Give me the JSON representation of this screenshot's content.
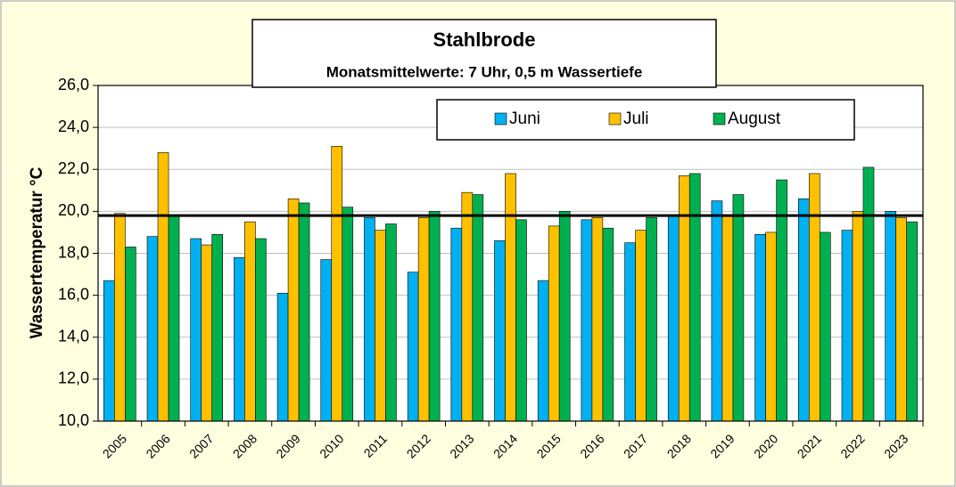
{
  "chart_data": {
    "type": "bar",
    "title": "Stahlbrode",
    "subtitle": "Monatsmittelwerte: 7 Uhr, 0,5 m Wassertiefe",
    "y_label": "Wassertemperatur °C",
    "categories": [
      "2005",
      "2006",
      "2007",
      "2008",
      "2009",
      "2010",
      "2011",
      "2012",
      "2013",
      "2014",
      "2015",
      "2016",
      "2017",
      "2018",
      "2019",
      "2020",
      "2021",
      "2022",
      "2023"
    ],
    "series": [
      {
        "name": "Juni",
        "color": "#00b0f0",
        "values": [
          16.7,
          18.8,
          18.7,
          17.8,
          16.1,
          17.7,
          19.7,
          17.1,
          19.2,
          18.6,
          16.7,
          19.6,
          18.5,
          19.8,
          20.5,
          18.9,
          20.6,
          19.1,
          20.0
        ]
      },
      {
        "name": "Juli",
        "color": "#ffc000",
        "values": [
          19.9,
          22.8,
          18.4,
          19.5,
          20.6,
          23.1,
          19.1,
          19.7,
          20.9,
          21.8,
          19.3,
          19.7,
          19.1,
          21.7,
          19.8,
          19.0,
          21.8,
          20.0,
          19.7
        ]
      },
      {
        "name": "August",
        "color": "#00b050",
        "values": [
          18.3,
          19.8,
          18.9,
          18.7,
          20.4,
          20.2,
          19.4,
          20.0,
          20.8,
          19.6,
          20.0,
          19.2,
          19.7,
          21.8,
          20.8,
          21.5,
          19.0,
          22.1,
          19.5
        ]
      }
    ],
    "reference_line": 19.8,
    "ylim": [
      10,
      26
    ],
    "yticks": [
      {
        "value": 10,
        "label": "10,0"
      },
      {
        "value": 12,
        "label": "12,0"
      },
      {
        "value": 14,
        "label": "14,0"
      },
      {
        "value": 16,
        "label": "16,0"
      },
      {
        "value": 18,
        "label": "18,0"
      },
      {
        "value": 20,
        "label": "20,0"
      },
      {
        "value": 22,
        "label": "22,0"
      },
      {
        "value": 24,
        "label": "24,0"
      },
      {
        "value": 26,
        "label": "26,0"
      }
    ],
    "grid": true,
    "legend": "top-right"
  }
}
